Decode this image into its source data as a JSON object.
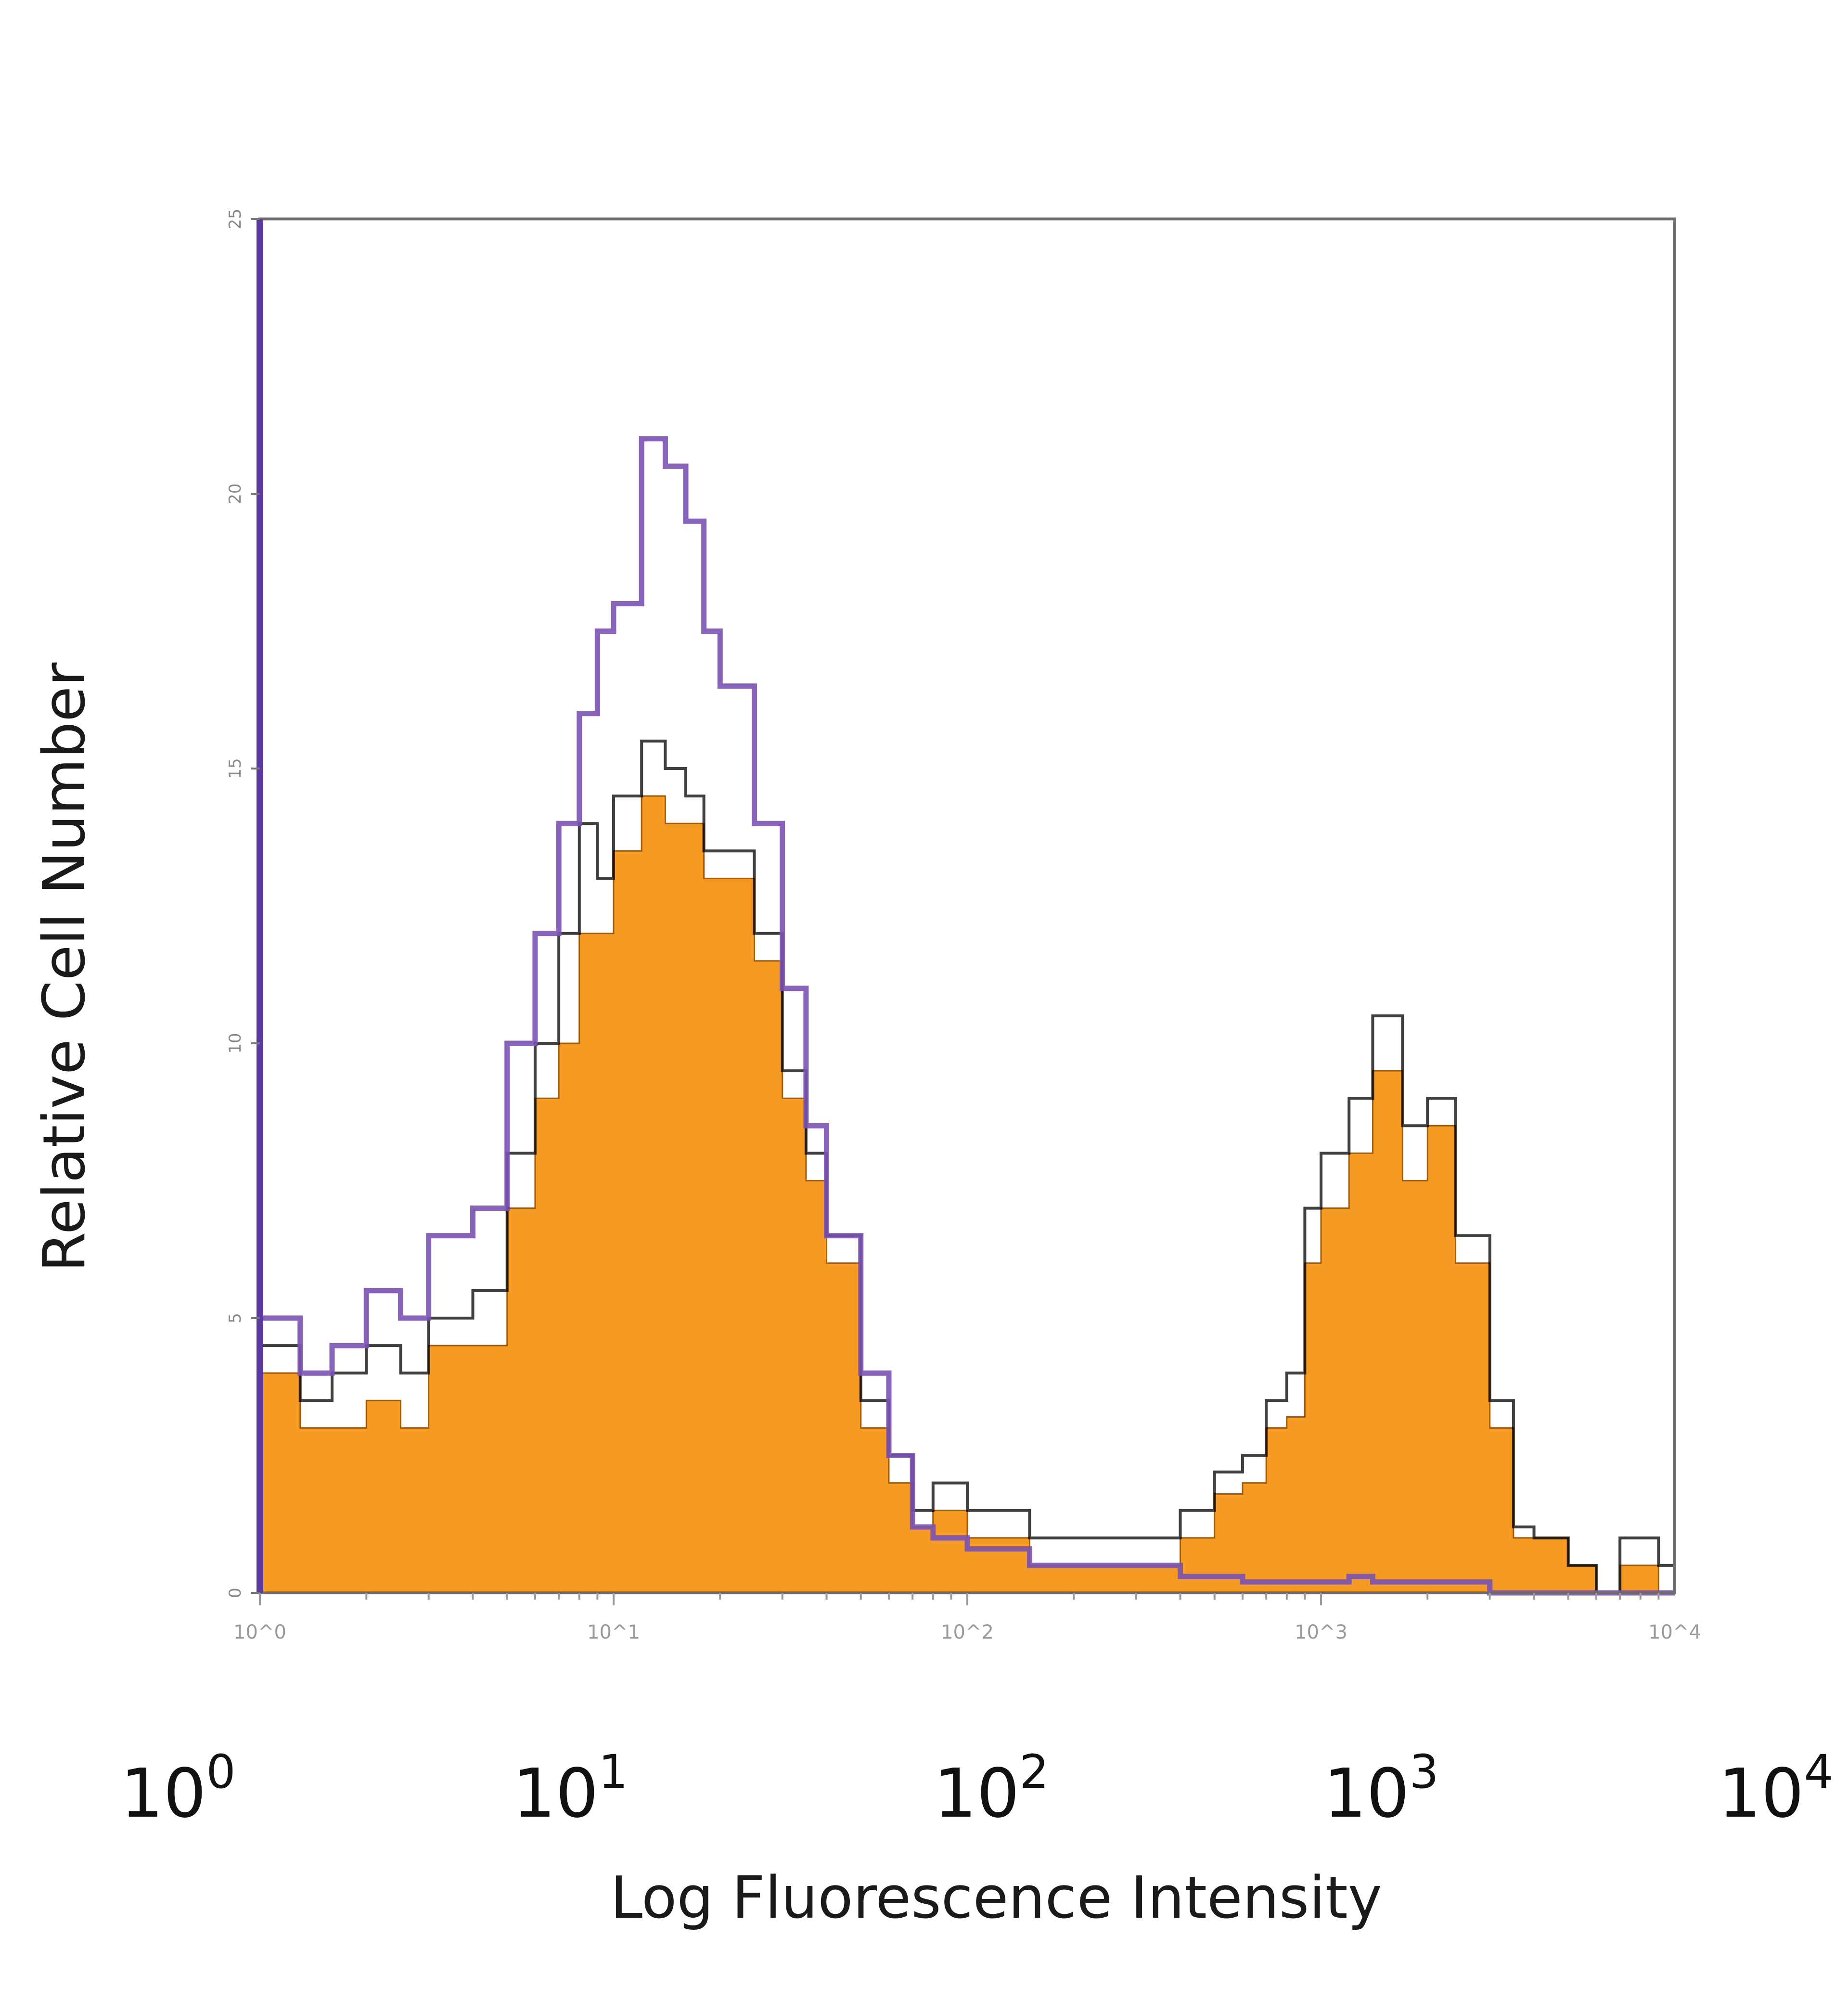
{
  "chart_data": {
    "type": "area",
    "xlabel": "Log Fluorescence Intensity",
    "ylabel": "Relative Cell Number",
    "x_scale": "log",
    "xlim": [
      1,
      10000
    ],
    "ylim": [
      0,
      25
    ],
    "x_ticks": [
      {
        "base": "10",
        "exp": "0",
        "value": 1
      },
      {
        "base": "10",
        "exp": "1",
        "value": 10
      },
      {
        "base": "10",
        "exp": "2",
        "value": 100
      },
      {
        "base": "10",
        "exp": "3",
        "value": 1000
      },
      {
        "base": "10",
        "exp": "4",
        "value": 10000
      }
    ],
    "y_ticks": [
      0,
      5,
      10,
      15,
      20,
      25
    ],
    "small_x_ticks": [
      "10^0",
      "10^1",
      "10^2",
      "10^3",
      "10^4"
    ],
    "grid": false,
    "series": [
      {
        "style": "filled",
        "color": "#f59a23",
        "x": [
          1,
          1.3,
          1.6,
          2,
          2.5,
          3,
          4,
          5,
          6,
          7,
          8,
          9,
          10,
          12,
          14,
          16,
          18,
          20,
          25,
          30,
          35,
          40,
          50,
          60,
          70,
          80,
          100,
          150,
          200,
          300,
          400,
          500,
          600,
          700,
          800,
          900,
          1000,
          1200,
          1400,
          1700,
          2000,
          2400,
          3000,
          3500,
          4000,
          5000,
          6000,
          7000,
          8000,
          9000,
          10000
        ],
        "values": [
          4,
          3,
          3,
          3.5,
          3,
          4.5,
          4.5,
          7,
          9,
          10,
          12,
          12,
          13.5,
          14.5,
          14,
          14,
          13,
          13,
          11.5,
          9,
          7.5,
          6,
          3,
          2,
          1.2,
          1.5,
          1,
          0.5,
          0.5,
          0.5,
          1,
          1.8,
          2,
          3,
          3.2,
          6,
          7,
          8,
          9.5,
          7.5,
          8.5,
          6,
          3,
          1,
          1,
          0.5,
          0,
          0.5,
          0.5,
          0,
          0
        ]
      },
      {
        "style": "outline",
        "color": "#000000",
        "x": [
          1,
          1.3,
          1.6,
          2,
          2.5,
          3,
          4,
          5,
          6,
          7,
          8,
          9,
          10,
          12,
          14,
          16,
          18,
          20,
          25,
          30,
          35,
          40,
          50,
          60,
          70,
          80,
          100,
          150,
          200,
          300,
          400,
          500,
          600,
          700,
          800,
          900,
          1000,
          1200,
          1400,
          1700,
          2000,
          2400,
          3000,
          3500,
          4000,
          5000,
          6000,
          7000,
          8000,
          9000,
          10000
        ],
        "values": [
          4.5,
          3.5,
          4,
          4.5,
          4,
          5,
          5.5,
          8,
          10,
          12,
          14,
          13,
          14.5,
          15.5,
          15,
          14.5,
          13.5,
          13.5,
          12,
          9.5,
          8,
          6.5,
          3.5,
          2.5,
          1.5,
          2,
          1.5,
          1,
          1,
          1,
          1.5,
          2.2,
          2.5,
          3.5,
          4,
          7,
          8,
          9,
          10.5,
          8.5,
          9,
          6.5,
          3.5,
          1.2,
          1,
          0.5,
          0,
          1,
          1,
          0.5,
          0
        ]
      },
      {
        "style": "outline",
        "color": "#7a52b3",
        "x": [
          1,
          1.3,
          1.6,
          2,
          2.5,
          3,
          4,
          5,
          6,
          7,
          8,
          9,
          10,
          12,
          14,
          16,
          18,
          20,
          25,
          30,
          35,
          40,
          50,
          60,
          70,
          80,
          100,
          150,
          200,
          300,
          400,
          500,
          600,
          700,
          800,
          900,
          1000,
          1200,
          1400,
          1700,
          2000,
          2400,
          3000,
          3500,
          4000,
          5000,
          6000,
          7000,
          8000,
          9000,
          10000
        ],
        "values": [
          5,
          4,
          4.5,
          5.5,
          5,
          6.5,
          7,
          10,
          12,
          14,
          16,
          17.5,
          18,
          21,
          20.5,
          19.5,
          17.5,
          16.5,
          14,
          11,
          8.5,
          6.5,
          4,
          2.5,
          1.2,
          1,
          0.8,
          0.5,
          0.5,
          0.5,
          0.3,
          0.3,
          0.2,
          0.2,
          0.2,
          0.2,
          0.2,
          0.3,
          0.2,
          0.2,
          0.2,
          0.2,
          0,
          0,
          0,
          0,
          0,
          0,
          0,
          0,
          0
        ]
      }
    ]
  }
}
